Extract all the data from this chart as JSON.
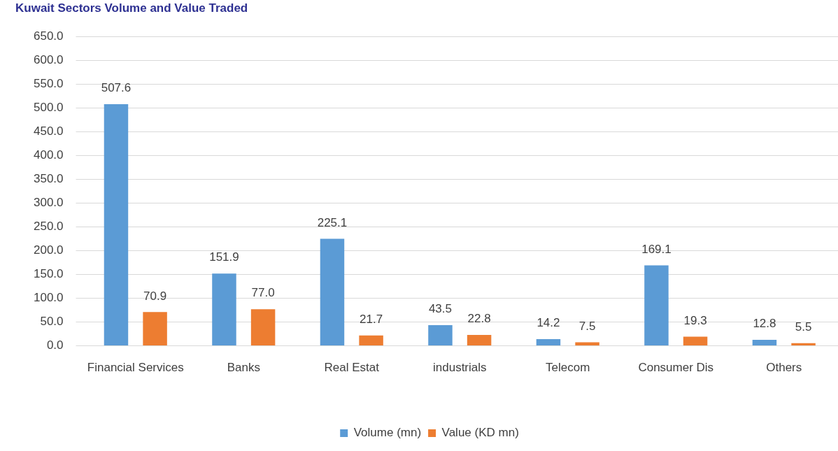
{
  "chart_data": {
    "type": "bar",
    "title": "Kuwait Sectors Volume and Value Traded",
    "categories": [
      "Financial Services",
      "Banks",
      "Real Estat",
      "industrials",
      "Telecom",
      "Consumer Dis",
      "Others"
    ],
    "series": [
      {
        "name": "Volume (mn)",
        "color": "#5b9bd5",
        "values": [
          507.6,
          151.9,
          225.1,
          43.5,
          14.2,
          169.1,
          12.8
        ]
      },
      {
        "name": "Value (KD mn)",
        "color": "#ed7d31",
        "values": [
          70.9,
          77.0,
          21.7,
          22.8,
          7.5,
          19.3,
          5.5
        ]
      }
    ],
    "value_labels": [
      [
        "507.6",
        "151.9",
        "225.1",
        "43.5",
        "14.2",
        "169.1",
        "12.8"
      ],
      [
        "70.9",
        "77.0",
        "21.7",
        "22.8",
        "7.5",
        "19.3",
        "5.5"
      ]
    ],
    "ylim": [
      0,
      650
    ],
    "yticks": [
      {
        "value": 0,
        "label": "0.0"
      },
      {
        "value": 50,
        "label": "50.0"
      },
      {
        "value": 100,
        "label": "100.0"
      },
      {
        "value": 150,
        "label": "150.0"
      },
      {
        "value": 200,
        "label": "200.0"
      },
      {
        "value": 250,
        "label": "250.0"
      },
      {
        "value": 300,
        "label": "300.0"
      },
      {
        "value": 350,
        "label": "350.0"
      },
      {
        "value": 400,
        "label": "400.0"
      },
      {
        "value": 450,
        "label": "450.0"
      },
      {
        "value": 500,
        "label": "500.0"
      },
      {
        "value": 550,
        "label": "550.0"
      },
      {
        "value": 600,
        "label": "600.0"
      },
      {
        "value": 650,
        "label": "650.0"
      }
    ],
    "grid": "y",
    "legend": "bottom"
  }
}
